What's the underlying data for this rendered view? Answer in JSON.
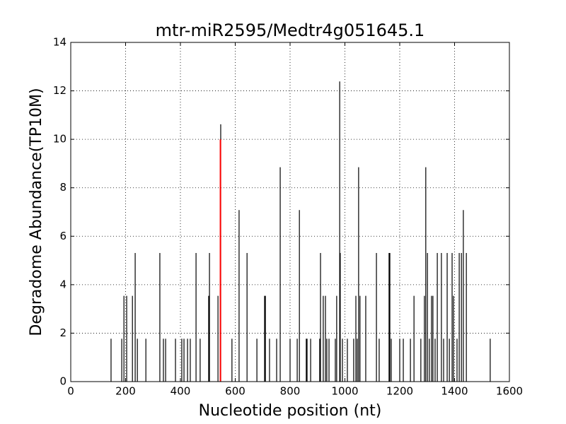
{
  "chart_data": {
    "type": "vlines",
    "title": "mtr-miR2595/Medtr4g051645.1",
    "xlabel": "Nucleotide position (nt)",
    "ylabel": "Degradome Abundance(TP10M)",
    "xlim": [
      0,
      1600
    ],
    "ylim": [
      0,
      14
    ],
    "xticks": [
      0,
      200,
      400,
      600,
      800,
      1000,
      1200,
      1400,
      1600
    ],
    "yticks": [
      0,
      2,
      4,
      6,
      8,
      10,
      12,
      14
    ],
    "grid": true,
    "series": [
      {
        "color": "#000000",
        "x": [
          147,
          186,
          194,
          204,
          225,
          235,
          243,
          274,
          325,
          338,
          346,
          382,
          405,
          413,
          426,
          436,
          457,
          472,
          503,
          506,
          537,
          547,
          588,
          614,
          643,
          679,
          707,
          710,
          725,
          751,
          764,
          800,
          826,
          834,
          859,
          862,
          875,
          908,
          911,
          921,
          929,
          934,
          942,
          965,
          970,
          981,
          983,
          991,
          1009,
          1032,
          1040,
          1045,
          1050,
          1055,
          1076,
          1115,
          1125,
          1161,
          1164,
          1169,
          1200,
          1213,
          1239,
          1252,
          1277,
          1290,
          1295,
          1301,
          1308,
          1316,
          1321,
          1329,
          1337,
          1352,
          1360,
          1373,
          1381,
          1391,
          1396,
          1409,
          1417,
          1425,
          1432,
          1443,
          1530
        ],
        "values": [
          1.77,
          1.77,
          3.54,
          3.54,
          3.54,
          5.31,
          1.77,
          1.77,
          5.31,
          1.77,
          1.77,
          1.77,
          1.77,
          1.77,
          1.77,
          1.77,
          5.31,
          1.77,
          3.54,
          5.31,
          3.54,
          10.62,
          1.77,
          7.08,
          5.31,
          1.77,
          3.54,
          3.54,
          1.77,
          1.77,
          8.85,
          1.77,
          1.77,
          7.08,
          1.77,
          1.77,
          1.77,
          1.77,
          5.31,
          3.54,
          3.54,
          1.77,
          1.77,
          1.77,
          3.54,
          12.39,
          5.31,
          1.77,
          1.77,
          1.77,
          3.54,
          1.77,
          8.85,
          3.54,
          3.54,
          5.31,
          1.77,
          5.31,
          5.31,
          1.77,
          1.77,
          1.77,
          1.77,
          3.54,
          1.77,
          3.54,
          8.85,
          5.31,
          1.77,
          3.54,
          3.54,
          1.77,
          5.31,
          5.31,
          1.77,
          5.31,
          1.77,
          5.31,
          3.54,
          1.77,
          5.31,
          5.31,
          7.08,
          5.31,
          1.77
        ]
      },
      {
        "color": "#ff0000",
        "x": [
          546
        ],
        "values": [
          10
        ]
      }
    ]
  }
}
